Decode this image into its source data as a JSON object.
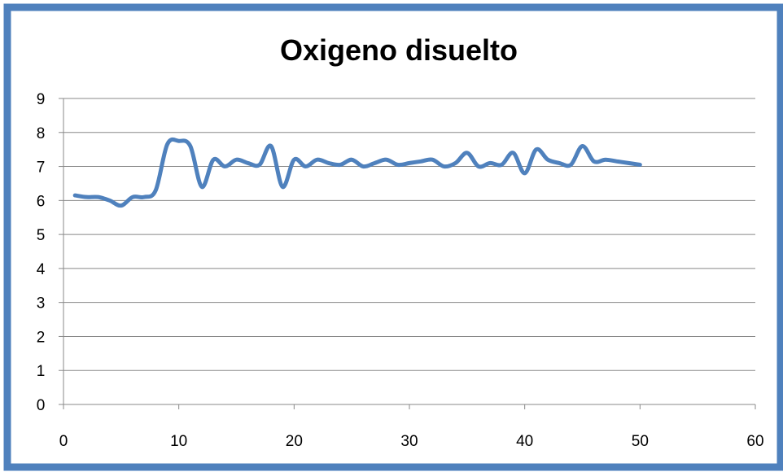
{
  "chart_data": {
    "type": "line",
    "title": "Oxigeno disuelto",
    "xlabel": "",
    "ylabel": "",
    "xlim": [
      0,
      60
    ],
    "ylim": [
      0,
      9
    ],
    "xticks": [
      0,
      10,
      20,
      30,
      40,
      50,
      60
    ],
    "yticks": [
      0,
      1,
      2,
      3,
      4,
      5,
      6,
      7,
      8,
      9
    ],
    "grid": "horizontal",
    "legend": "none",
    "smooth": true,
    "series": [
      {
        "color": "#4f81bd",
        "x": [
          1,
          2,
          3,
          4,
          5,
          6,
          7,
          8,
          9,
          10,
          11,
          12,
          13,
          14,
          15,
          16,
          17,
          18,
          19,
          20,
          21,
          22,
          23,
          24,
          25,
          26,
          27,
          28,
          29,
          30,
          31,
          32,
          33,
          34,
          35,
          36,
          37,
          38,
          39,
          40,
          41,
          42,
          43,
          44,
          45,
          46,
          47,
          48,
          49,
          50
        ],
        "y": [
          6.15,
          6.1,
          6.1,
          6.0,
          5.85,
          6.1,
          6.1,
          6.3,
          7.65,
          7.75,
          7.6,
          6.4,
          7.2,
          7.0,
          7.2,
          7.1,
          7.05,
          7.6,
          6.4,
          7.2,
          7.0,
          7.2,
          7.1,
          7.05,
          7.2,
          7.0,
          7.1,
          7.2,
          7.05,
          7.1,
          7.15,
          7.2,
          7.0,
          7.1,
          7.4,
          7.0,
          7.1,
          7.05,
          7.4,
          6.8,
          7.5,
          7.2,
          7.1,
          7.05,
          7.6,
          7.15,
          7.2,
          7.15,
          7.1,
          7.05
        ]
      }
    ],
    "frame_color": "#4f81bd"
  }
}
